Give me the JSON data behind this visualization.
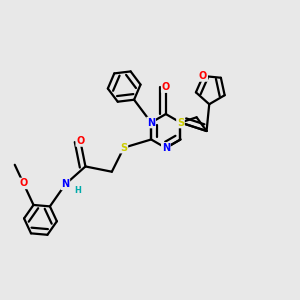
{
  "bg_color": "#e8e8e8",
  "atom_colors": {
    "C": "#000000",
    "N": "#0000ff",
    "O": "#ff0000",
    "S": "#cccc00",
    "H": "#00aaaa"
  },
  "bond_color": "#000000",
  "bond_width": 1.6,
  "dbo": 0.018
}
